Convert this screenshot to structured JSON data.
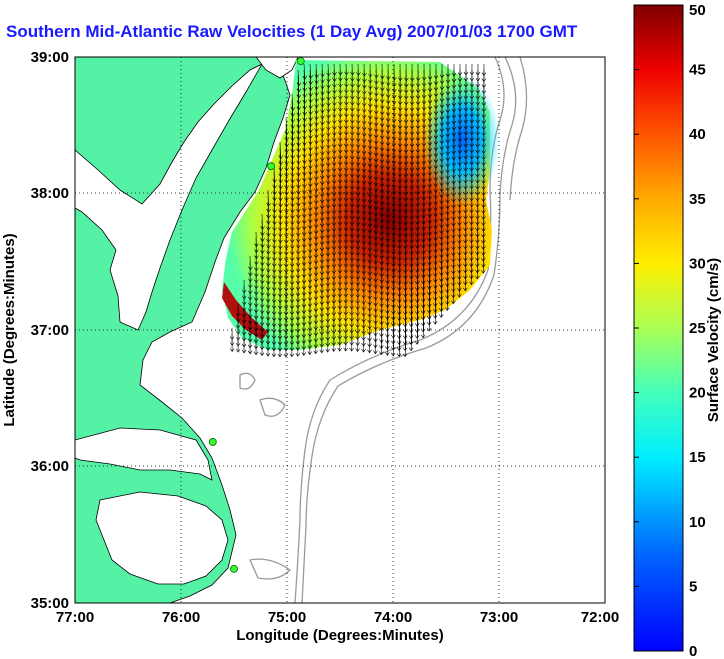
{
  "title": "Southern Mid-Atlantic Raw Velocities (1 Day Avg) 2007/01/03 1700 GMT",
  "map": {
    "x_axis_label": "Longitude (Degrees:Minutes)",
    "y_axis_label": "Latitude (Degrees:Minutes)",
    "x_ticks": [
      "77:00",
      "76:00",
      "75:00",
      "74:00",
      "73:00",
      "72:00"
    ],
    "y_ticks": [
      "39:00",
      "38:00",
      "37:00",
      "36:00",
      "35:00"
    ],
    "lon_range": [
      -77,
      -72
    ],
    "lat_range": [
      35,
      39
    ],
    "land_color": "#55f2a6",
    "sea_color": "#ffffff"
  },
  "colorbar": {
    "label": "Surface Velocity (cm/s)",
    "ticks": [
      "50",
      "45",
      "40",
      "35",
      "30",
      "25",
      "20",
      "15",
      "10",
      "5",
      "0"
    ],
    "range": [
      0,
      50
    ],
    "colormap": "jet"
  },
  "stations": [
    {
      "lon": -74.87,
      "lat": 38.97
    },
    {
      "lon": -75.15,
      "lat": 38.2
    },
    {
      "lon": -75.7,
      "lat": 36.18
    },
    {
      "lon": -75.5,
      "lat": 35.25
    }
  ]
}
